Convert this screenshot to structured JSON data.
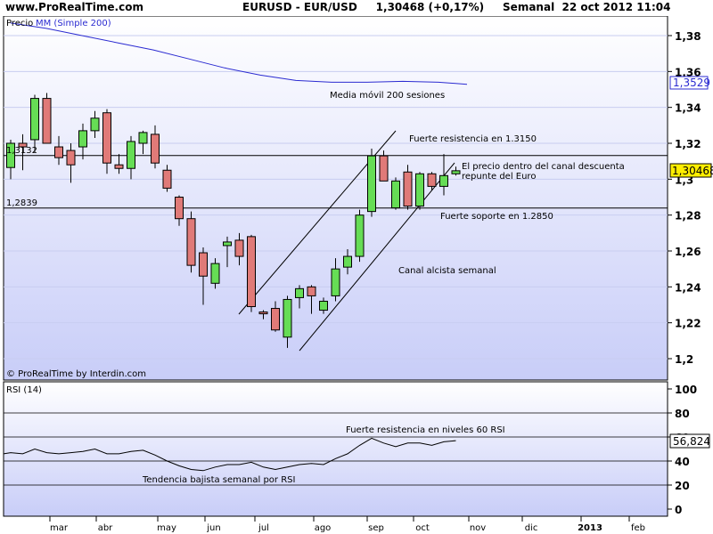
{
  "header": {
    "site": "www.ProRealTime.com",
    "symbol_line": "EURUSD - EUR/USD     1,30468 (+0,17%)     Semanal  22 oct 2012 11:04"
  },
  "colors": {
    "background": "#ffffff",
    "plot_gradient_top": "#ffffff",
    "plot_gradient_bottom": "#c8cdf8",
    "up_candle": "#66dd55",
    "down_candle": "#e07a78",
    "ma_line": "#2b2bd1",
    "rsi_line": "#000000",
    "price_label_bg": "#ffee00"
  },
  "price_panel": {
    "legend_prefix": "Precio",
    "legend_ma": "MM (Simple 200)",
    "credit": "© ProRealTime by Interdin.com",
    "ma_last_label": "1,3529",
    "price_last_label": "1,30468",
    "level_left_1": "1,3132",
    "level_left_2": "1,2839",
    "annotations": {
      "ma": "Media móvil 200 sesiones",
      "resistance": "Fuerte resistencia en 1.3150",
      "channel_1": "El precio dentro del canal descuenta",
      "channel_2": "repunte del Euro",
      "support": "Fuerte soporte en 1.2850",
      "uptrend": "Canal alcista semanal"
    },
    "y_ticks": [
      "1,38",
      "1,36",
      "1,34",
      "1,32",
      "1,3",
      "1,28",
      "1,26",
      "1,24",
      "1,22",
      "1,2"
    ]
  },
  "rsi_panel": {
    "title": "RSI (14)",
    "last_label": "56,824",
    "y_ticks": [
      "100",
      "80",
      "60",
      "40",
      "20",
      "0"
    ],
    "annotations": {
      "resistance": "Fuerte resistencia en niveles 60 RSI",
      "trend": "Tendencia bajista semanal por RSI"
    }
  },
  "x_axis": {
    "months": [
      "mar",
      "abr",
      "may",
      "jun",
      "jul",
      "ago",
      "sep",
      "oct",
      "nov",
      "dic",
      "2013",
      "feb"
    ]
  },
  "chart_data": {
    "type": "candlestick",
    "title": "EURUSD - EUR/USD  Semanal",
    "ylim": [
      1.195,
      1.395
    ],
    "horizontal_levels": [
      1.3132,
      1.2839
    ],
    "candles": [
      {
        "o": 1.3065,
        "h": 1.322,
        "l": 1.3,
        "c": 1.32
      },
      {
        "o": 1.32,
        "h": 1.325,
        "l": 1.305,
        "c": 1.318
      },
      {
        "o": 1.322,
        "h": 1.347,
        "l": 1.315,
        "c": 1.345
      },
      {
        "o": 1.345,
        "h": 1.348,
        "l": 1.32,
        "c": 1.32
      },
      {
        "o": 1.318,
        "h": 1.324,
        "l": 1.308,
        "c": 1.312
      },
      {
        "o": 1.316,
        "h": 1.32,
        "l": 1.298,
        "c": 1.308
      },
      {
        "o": 1.318,
        "h": 1.331,
        "l": 1.311,
        "c": 1.327
      },
      {
        "o": 1.327,
        "h": 1.338,
        "l": 1.323,
        "c": 1.334
      },
      {
        "o": 1.337,
        "h": 1.339,
        "l": 1.303,
        "c": 1.309
      },
      {
        "o": 1.308,
        "h": 1.314,
        "l": 1.303,
        "c": 1.306
      },
      {
        "o": 1.306,
        "h": 1.324,
        "l": 1.3,
        "c": 1.321
      },
      {
        "o": 1.32,
        "h": 1.327,
        "l": 1.314,
        "c": 1.326
      },
      {
        "o": 1.325,
        "h": 1.33,
        "l": 1.306,
        "c": 1.309
      },
      {
        "o": 1.305,
        "h": 1.308,
        "l": 1.293,
        "c": 1.295
      },
      {
        "o": 1.29,
        "h": 1.291,
        "l": 1.274,
        "c": 1.278
      },
      {
        "o": 1.278,
        "h": 1.282,
        "l": 1.248,
        "c": 1.252
      },
      {
        "o": 1.259,
        "h": 1.262,
        "l": 1.23,
        "c": 1.246
      },
      {
        "o": 1.242,
        "h": 1.256,
        "l": 1.239,
        "c": 1.253
      },
      {
        "o": 1.263,
        "h": 1.268,
        "l": 1.251,
        "c": 1.265
      },
      {
        "o": 1.266,
        "h": 1.27,
        "l": 1.252,
        "c": 1.257
      },
      {
        "o": 1.268,
        "h": 1.269,
        "l": 1.226,
        "c": 1.229
      },
      {
        "o": 1.226,
        "h": 1.227,
        "l": 1.222,
        "c": 1.225
      },
      {
        "o": 1.228,
        "h": 1.232,
        "l": 1.215,
        "c": 1.216
      },
      {
        "o": 1.212,
        "h": 1.235,
        "l": 1.206,
        "c": 1.233
      },
      {
        "o": 1.234,
        "h": 1.241,
        "l": 1.228,
        "c": 1.239
      },
      {
        "o": 1.24,
        "h": 1.241,
        "l": 1.225,
        "c": 1.235
      },
      {
        "o": 1.227,
        "h": 1.234,
        "l": 1.225,
        "c": 1.232
      },
      {
        "o": 1.235,
        "h": 1.256,
        "l": 1.232,
        "c": 1.25
      },
      {
        "o": 1.251,
        "h": 1.261,
        "l": 1.247,
        "c": 1.257
      },
      {
        "o": 1.257,
        "h": 1.283,
        "l": 1.254,
        "c": 1.28
      },
      {
        "o": 1.282,
        "h": 1.317,
        "l": 1.279,
        "c": 1.313
      },
      {
        "o": 1.313,
        "h": 1.316,
        "l": 1.299,
        "c": 1.299
      },
      {
        "o": 1.284,
        "h": 1.301,
        "l": 1.283,
        "c": 1.299
      },
      {
        "o": 1.304,
        "h": 1.308,
        "l": 1.283,
        "c": 1.285
      },
      {
        "o": 1.285,
        "h": 1.304,
        "l": 1.283,
        "c": 1.303
      },
      {
        "o": 1.303,
        "h": 1.304,
        "l": 1.294,
        "c": 1.296
      },
      {
        "o": 1.296,
        "h": 1.314,
        "l": 1.291,
        "c": 1.302
      },
      {
        "o": 1.303,
        "h": 1.307,
        "l": 1.302,
        "c": 1.3047
      }
    ],
    "ma200": [
      [
        0,
        1.387
      ],
      [
        40,
        1.384
      ],
      [
        80,
        1.38
      ],
      [
        120,
        1.376
      ],
      [
        160,
        1.372
      ],
      [
        200,
        1.367
      ],
      [
        240,
        1.362
      ],
      [
        280,
        1.358
      ],
      [
        320,
        1.355
      ],
      [
        360,
        1.354
      ],
      [
        400,
        1.354
      ],
      [
        440,
        1.3545
      ],
      [
        480,
        1.354
      ],
      [
        512,
        1.3529
      ]
    ],
    "rsi": [
      47,
      46,
      50,
      47,
      46,
      47,
      48,
      50,
      46,
      46,
      48,
      49,
      45,
      40,
      36,
      33,
      32,
      35,
      37,
      37,
      39,
      35,
      33,
      35,
      37,
      38,
      37,
      42,
      46,
      53,
      59,
      55,
      52,
      55,
      55,
      53,
      56,
      57
    ]
  }
}
